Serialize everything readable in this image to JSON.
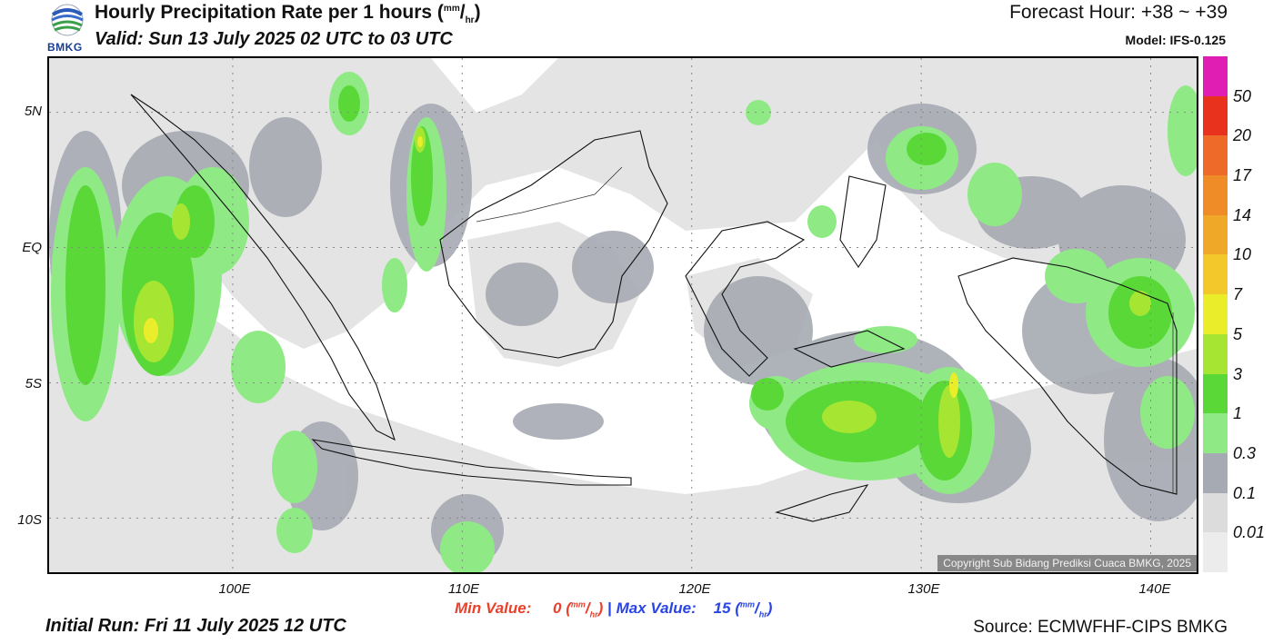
{
  "header": {
    "title": "Hourly Precipitation Rate per 1 hours",
    "title_unit_top": "mm",
    "title_unit_bottom": "hr",
    "valid": "Valid: Sun 13 July 2025 02 UTC to 03 UTC",
    "forecast_hour": "Forecast Hour: +38 ~ +39",
    "model": "Model: IFS-0.125",
    "logo_text": "BMKG"
  },
  "map": {
    "lat_labels": [
      "5N",
      "EQ",
      "5S",
      "10S"
    ],
    "lon_labels": [
      "100E",
      "110E",
      "120E",
      "130E",
      "140E"
    ],
    "lon_range": [
      92,
      142
    ],
    "lat_range": [
      -12,
      7
    ],
    "copyright": "Copyright Sub Bidang Prediksi Cuaca BMKG, 2025"
  },
  "stats": {
    "min_label": "Min Value:",
    "min_value": "0",
    "max_label": "Max Value:",
    "max_value": "15",
    "unit_top": "mm",
    "unit_bottom": "hr",
    "separator": "|"
  },
  "footer": {
    "initial_run": "Initial Run: Fri 11 July 2025 12 UTC",
    "source": "Source: ECMWFHF-CIPS BMKG"
  },
  "colorbar": {
    "labels": [
      "50",
      "20",
      "17",
      "14",
      "10",
      "7",
      "5",
      "3",
      "1",
      "0.3",
      "0.1",
      "0.01"
    ],
    "colors": [
      "#e01eb4",
      "#e8321e",
      "#ee6a28",
      "#f08c28",
      "#f0a828",
      "#f2c82a",
      "#eaee2a",
      "#a6e632",
      "#5ad838",
      "#8fea86",
      "#a6aab2",
      "#dcdcdc",
      "#ececec"
    ]
  },
  "legend_colors": {
    "light": "#e4e4e4",
    "gray": "#a6aab2",
    "lightgreen": "#8fea86",
    "green": "#5ad838",
    "yellowgreen": "#a6e632",
    "yellow": "#eaee2a"
  }
}
